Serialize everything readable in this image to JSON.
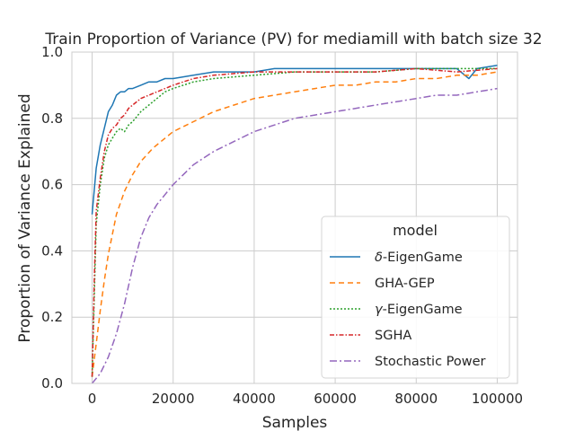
{
  "chart_data": {
    "type": "line",
    "title": "Train Proportion of Variance (PV) for mediamill with batch size 32",
    "xlabel": "Samples",
    "ylabel": "Proportion of Variance Explained",
    "xlim": [
      -5000,
      105000
    ],
    "ylim": [
      0.0,
      1.0
    ],
    "xticks": [
      0,
      20000,
      40000,
      60000,
      80000,
      100000
    ],
    "xtick_labels": [
      "0",
      "20000",
      "40000",
      "60000",
      "80000",
      "100000"
    ],
    "yticks": [
      0.0,
      0.2,
      0.4,
      0.6,
      0.8,
      1.0
    ],
    "ytick_labels": [
      "0.0",
      "0.2",
      "0.4",
      "0.6",
      "0.8",
      "1.0"
    ],
    "grid": true,
    "legend": {
      "title": "model",
      "position": "lower-right"
    },
    "series": [
      {
        "name": "δ-EigenGame",
        "label_math": "δ",
        "label_text": "-EigenGame",
        "color": "#1f77b4",
        "dash": "",
        "x": [
          0,
          1000,
          2000,
          3000,
          4000,
          5000,
          6000,
          7000,
          8000,
          9000,
          10000,
          12000,
          14000,
          16000,
          18000,
          20000,
          25000,
          30000,
          35000,
          40000,
          45000,
          50000,
          55000,
          60000,
          65000,
          70000,
          75000,
          80000,
          85000,
          90000,
          93000,
          95000,
          100000
        ],
        "y": [
          0.51,
          0.65,
          0.72,
          0.77,
          0.82,
          0.84,
          0.87,
          0.88,
          0.88,
          0.89,
          0.89,
          0.9,
          0.91,
          0.91,
          0.92,
          0.92,
          0.93,
          0.94,
          0.94,
          0.94,
          0.95,
          0.95,
          0.95,
          0.95,
          0.95,
          0.95,
          0.95,
          0.95,
          0.95,
          0.95,
          0.92,
          0.95,
          0.96
        ]
      },
      {
        "name": "GHA-GEP",
        "color": "#ff7f0e",
        "dash": "6,4",
        "x": [
          0,
          1000,
          2000,
          3000,
          4000,
          5000,
          6000,
          8000,
          10000,
          12000,
          15000,
          18000,
          20000,
          25000,
          30000,
          35000,
          40000,
          45000,
          50000,
          55000,
          60000,
          65000,
          70000,
          75000,
          80000,
          85000,
          90000,
          95000,
          100000
        ],
        "y": [
          0.02,
          0.12,
          0.22,
          0.31,
          0.39,
          0.45,
          0.51,
          0.58,
          0.63,
          0.67,
          0.71,
          0.74,
          0.76,
          0.79,
          0.82,
          0.84,
          0.86,
          0.87,
          0.88,
          0.89,
          0.9,
          0.9,
          0.91,
          0.91,
          0.92,
          0.92,
          0.93,
          0.93,
          0.94
        ]
      },
      {
        "name": "γ-EigenGame",
        "label_math": "γ",
        "label_text": "-EigenGame",
        "color": "#2ca02c",
        "dash": "2,2",
        "x": [
          0,
          500,
          1000,
          2000,
          3000,
          4000,
          5000,
          6000,
          7000,
          8000,
          9000,
          10000,
          12000,
          14000,
          16000,
          18000,
          20000,
          25000,
          30000,
          40000,
          50000,
          60000,
          70000,
          80000,
          90000,
          100000
        ],
        "y": [
          0.02,
          0.25,
          0.48,
          0.6,
          0.68,
          0.72,
          0.74,
          0.76,
          0.77,
          0.76,
          0.78,
          0.79,
          0.82,
          0.84,
          0.86,
          0.88,
          0.89,
          0.91,
          0.92,
          0.93,
          0.94,
          0.94,
          0.94,
          0.95,
          0.95,
          0.95
        ]
      },
      {
        "name": "SGHA",
        "color": "#d62728",
        "dash": "5,2,1.5,2",
        "x": [
          0,
          500,
          1000,
          2000,
          3000,
          4000,
          5000,
          6000,
          7000,
          8000,
          9000,
          10000,
          12000,
          14000,
          16000,
          18000,
          20000,
          25000,
          30000,
          40000,
          50000,
          60000,
          70000,
          80000,
          90000,
          100000
        ],
        "y": [
          0.02,
          0.3,
          0.52,
          0.62,
          0.7,
          0.75,
          0.77,
          0.78,
          0.8,
          0.81,
          0.83,
          0.84,
          0.86,
          0.87,
          0.88,
          0.89,
          0.9,
          0.92,
          0.93,
          0.94,
          0.94,
          0.94,
          0.94,
          0.95,
          0.94,
          0.95
        ]
      },
      {
        "name": "Stochastic Power",
        "color": "#9467bd",
        "dash": "8,3,2,3",
        "x": [
          0,
          2000,
          4000,
          6000,
          8000,
          10000,
          12000,
          14000,
          16000,
          18000,
          20000,
          25000,
          30000,
          35000,
          40000,
          45000,
          50000,
          55000,
          60000,
          65000,
          70000,
          75000,
          80000,
          85000,
          90000,
          95000,
          100000
        ],
        "y": [
          0.0,
          0.03,
          0.08,
          0.15,
          0.24,
          0.35,
          0.44,
          0.5,
          0.54,
          0.57,
          0.6,
          0.66,
          0.7,
          0.73,
          0.76,
          0.78,
          0.8,
          0.81,
          0.82,
          0.83,
          0.84,
          0.85,
          0.86,
          0.87,
          0.87,
          0.88,
          0.89
        ]
      }
    ]
  }
}
